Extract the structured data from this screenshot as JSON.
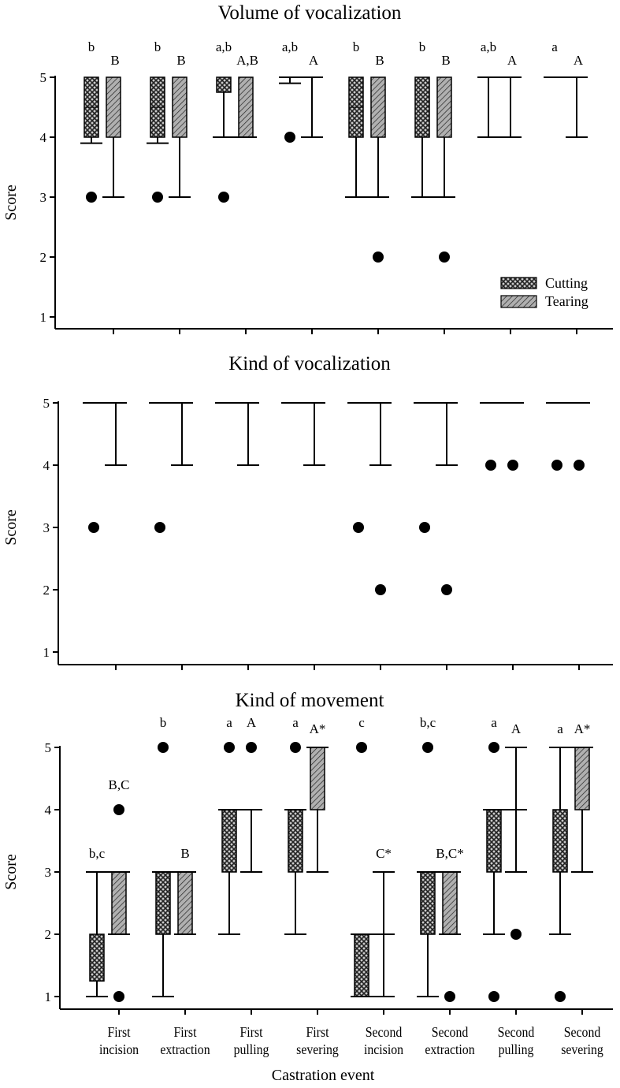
{
  "chart_data": [
    {
      "type": "box",
      "title": "Volume of vocalization",
      "ylabel": "Score",
      "ylim": [
        1,
        5
      ],
      "yticks": [
        1,
        2,
        3,
        4,
        5
      ],
      "legend": {
        "position": "bottom-right",
        "entries": [
          "Cutting",
          "Tearing"
        ]
      },
      "series": [
        {
          "name": "Cutting",
          "pattern": "crosshatch",
          "letters": [
            "b",
            "b",
            "a,b",
            "a,b",
            "b",
            "b",
            "a,b",
            "a"
          ],
          "boxes": [
            {
              "lo": 3.9,
              "q1": 4,
              "median": 4.5,
              "q3": 5,
              "hi": null,
              "outliers": [
                3
              ]
            },
            {
              "lo": 3.9,
              "q1": 4,
              "median": 4.5,
              "q3": 5,
              "hi": null,
              "outliers": [
                3
              ]
            },
            {
              "lo": 4,
              "q1": 4.75,
              "median": null,
              "q3": 5,
              "hi": null,
              "outliers": [
                3
              ]
            },
            {
              "lo": 4.9,
              "q1": null,
              "median": null,
              "q3": null,
              "hi": 5,
              "outliers": [
                4
              ]
            },
            {
              "lo": 3,
              "q1": 4,
              "median": 4.5,
              "q3": 5,
              "hi": null,
              "outliers": []
            },
            {
              "lo": 3,
              "q1": 4,
              "median": null,
              "q3": 5,
              "hi": null,
              "outliers": []
            },
            {
              "lo": 4,
              "q1": null,
              "median": null,
              "q3": null,
              "hi": 5,
              "outliers": []
            },
            {
              "lo": 5,
              "q1": null,
              "median": null,
              "q3": null,
              "hi": 5,
              "outliers": []
            }
          ]
        },
        {
          "name": "Tearing",
          "pattern": "diagonal",
          "letters": [
            "B",
            "B",
            "A,B",
            "A",
            "B",
            "B",
            "A",
            "A"
          ],
          "boxes": [
            {
              "lo": 3,
              "q1": 4,
              "median": null,
              "q3": 5,
              "hi": null,
              "outliers": []
            },
            {
              "lo": 3,
              "q1": 4,
              "median": null,
              "q3": 5,
              "hi": null,
              "outliers": []
            },
            {
              "lo": 4,
              "q1": 4,
              "median": null,
              "q3": 5,
              "hi": null,
              "outliers": []
            },
            {
              "lo": 4,
              "q1": null,
              "median": null,
              "q3": null,
              "hi": 5,
              "outliers": []
            },
            {
              "lo": 3,
              "q1": 4,
              "median": null,
              "q3": 5,
              "hi": null,
              "outliers": [
                2
              ]
            },
            {
              "lo": 3,
              "q1": 4,
              "median": null,
              "q3": 5,
              "hi": null,
              "outliers": [
                2
              ]
            },
            {
              "lo": 4,
              "q1": null,
              "median": null,
              "q3": null,
              "hi": 5,
              "outliers": []
            },
            {
              "lo": 4,
              "q1": null,
              "median": null,
              "q3": null,
              "hi": 5,
              "outliers": []
            }
          ]
        }
      ]
    },
    {
      "type": "box",
      "title": "Kind of vocalization",
      "ylabel": "Score",
      "ylim": [
        1,
        5
      ],
      "yticks": [
        1,
        2,
        3,
        4,
        5
      ],
      "series": [
        {
          "name": "Cutting",
          "pattern": "crosshatch",
          "boxes": [
            {
              "lo": 5,
              "q1": null,
              "median": null,
              "q3": null,
              "hi": 5,
              "outliers": [
                3
              ]
            },
            {
              "lo": 5,
              "q1": null,
              "median": null,
              "q3": null,
              "hi": 5,
              "outliers": [
                3
              ]
            },
            {
              "lo": 5,
              "q1": null,
              "median": null,
              "q3": null,
              "hi": 5,
              "outliers": []
            },
            {
              "lo": 5,
              "q1": null,
              "median": null,
              "q3": null,
              "hi": 5,
              "outliers": []
            },
            {
              "lo": 5,
              "q1": null,
              "median": null,
              "q3": null,
              "hi": 5,
              "outliers": [
                3
              ]
            },
            {
              "lo": 5,
              "q1": null,
              "median": null,
              "q3": null,
              "hi": 5,
              "outliers": [
                3
              ]
            },
            {
              "lo": 5,
              "q1": null,
              "median": null,
              "q3": null,
              "hi": 5,
              "outliers": [
                4
              ]
            },
            {
              "lo": 5,
              "q1": null,
              "median": null,
              "q3": null,
              "hi": 5,
              "outliers": [
                4
              ]
            }
          ]
        },
        {
          "name": "Tearing",
          "pattern": "diagonal",
          "boxes": [
            {
              "lo": 4,
              "q1": null,
              "median": null,
              "q3": null,
              "hi": 5,
              "outliers": []
            },
            {
              "lo": 4,
              "q1": null,
              "median": null,
              "q3": null,
              "hi": 5,
              "outliers": []
            },
            {
              "lo": 4,
              "q1": null,
              "median": null,
              "q3": null,
              "hi": 5,
              "outliers": []
            },
            {
              "lo": 4,
              "q1": null,
              "median": null,
              "q3": null,
              "hi": 5,
              "outliers": []
            },
            {
              "lo": 4,
              "q1": null,
              "median": null,
              "q3": null,
              "hi": 5,
              "outliers": [
                2
              ]
            },
            {
              "lo": 4,
              "q1": null,
              "median": null,
              "q3": null,
              "hi": 5,
              "outliers": [
                2
              ]
            },
            {
              "lo": 5,
              "q1": null,
              "median": null,
              "q3": null,
              "hi": 5,
              "outliers": [
                4
              ]
            },
            {
              "lo": 5,
              "q1": null,
              "median": null,
              "q3": null,
              "hi": 5,
              "outliers": [
                4
              ]
            }
          ]
        }
      ]
    },
    {
      "type": "box",
      "title": "Kind of movement",
      "ylabel": "Score",
      "xlabel": "Castration event",
      "ylim": [
        1,
        5
      ],
      "yticks": [
        1,
        2,
        3,
        4,
        5
      ],
      "categories": [
        [
          "First",
          "incision"
        ],
        [
          "First",
          "extraction"
        ],
        [
          "First",
          "pulling"
        ],
        [
          "First",
          "severing"
        ],
        [
          "Second",
          "incision"
        ],
        [
          "Second",
          "extraction"
        ],
        [
          "Second",
          "pulling"
        ],
        [
          "Second",
          "severing"
        ]
      ],
      "series": [
        {
          "name": "Cutting",
          "pattern": "crosshatch",
          "letters": [
            "b,c",
            "b",
            "a",
            "a",
            "c",
            "b,c",
            "a",
            "a"
          ],
          "boxes": [
            {
              "lo": 1,
              "q1": 1.25,
              "median": null,
              "q3": 2,
              "hi": 3,
              "outliers": []
            },
            {
              "lo": 1,
              "q1": 2,
              "median": null,
              "q3": 3,
              "hi": 3,
              "outliers": [
                5
              ]
            },
            {
              "lo": 2,
              "q1": 3,
              "median": null,
              "q3": 4,
              "hi": 4,
              "outliers": [
                5
              ]
            },
            {
              "lo": 2,
              "q1": 3,
              "median": null,
              "q3": 4,
              "hi": 4,
              "outliers": [
                5
              ]
            },
            {
              "lo": 1,
              "q1": 1,
              "median": null,
              "q3": 2,
              "hi": 2,
              "outliers": [
                5
              ]
            },
            {
              "lo": 1,
              "q1": 2,
              "median": null,
              "q3": 3,
              "hi": 3,
              "outliers": [
                5
              ]
            },
            {
              "lo": 2,
              "q1": 3,
              "median": null,
              "q3": 4,
              "hi": 4,
              "outliers": [
                5,
                1
              ]
            },
            {
              "lo": 2,
              "q1": 3,
              "median": null,
              "q3": 4,
              "hi": 5,
              "outliers": [
                1
              ]
            }
          ]
        },
        {
          "name": "Tearing",
          "pattern": "diagonal",
          "letters": [
            "B,C",
            "B",
            "A",
            "A*",
            "C*",
            "B,C*",
            "A",
            "A*"
          ],
          "boxes": [
            {
              "lo": 2,
              "q1": 2,
              "median": null,
              "q3": 3,
              "hi": 3,
              "outliers": [
                4,
                1
              ]
            },
            {
              "lo": 2,
              "q1": 2,
              "median": null,
              "q3": 3,
              "hi": 3,
              "outliers": []
            },
            {
              "lo": 3,
              "q1": null,
              "median": null,
              "q3": null,
              "hi": 4,
              "outliers": [
                5
              ]
            },
            {
              "lo": 3,
              "q1": 4,
              "median": null,
              "q3": 5,
              "hi": 5,
              "outliers": []
            },
            {
              "lo": 1,
              "q1": null,
              "median": 2,
              "q3": null,
              "hi": 3,
              "outliers": []
            },
            {
              "lo": 2,
              "q1": 2,
              "median": null,
              "q3": 3,
              "hi": 3,
              "outliers": [
                1
              ]
            },
            {
              "lo": 3,
              "q1": null,
              "median": 4,
              "q3": null,
              "hi": 5,
              "outliers": [
                2
              ]
            },
            {
              "lo": 3,
              "q1": 4,
              "median": null,
              "q3": 5,
              "hi": 5,
              "outliers": []
            }
          ]
        }
      ]
    }
  ]
}
